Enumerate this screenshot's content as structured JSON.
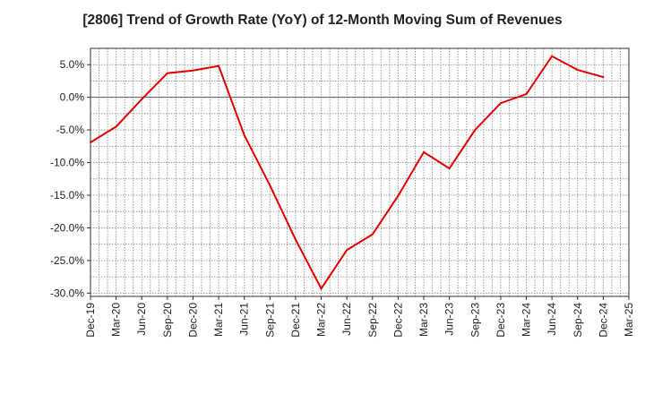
{
  "chart_data": {
    "type": "line",
    "title": "[2806]  Trend of Growth Rate (YoY) of 12-Month Moving Sum of Revenues",
    "xlabel": "",
    "ylabel": "",
    "x_tick_labels": [
      "Dec-19",
      "Mar-20",
      "Jun-20",
      "Sep-20",
      "Dec-20",
      "Mar-21",
      "Jun-21",
      "Sep-21",
      "Dec-21",
      "Mar-22",
      "Jun-22",
      "Sep-22",
      "Dec-22",
      "Mar-23",
      "Jun-23",
      "Sep-23",
      "Dec-23",
      "Mar-24",
      "Jun-24",
      "Sep-24",
      "Dec-24",
      "Mar-25"
    ],
    "y_ticks": [
      5,
      0,
      -5,
      -10,
      -15,
      -20,
      -25,
      -30
    ],
    "y_tick_labels": [
      "5.0%",
      "0.0%",
      "-5.0%",
      "-10.0%",
      "-15.0%",
      "-20.0%",
      "-25.0%",
      "-30.0%"
    ],
    "ylim": [
      -30.5,
      7.5
    ],
    "grid": true,
    "series": [
      {
        "name": "",
        "color": "#e00000",
        "x": [
          "Dec-19",
          "Mar-20",
          "Jun-20",
          "Sep-20",
          "Dec-20",
          "Mar-21",
          "Jun-21",
          "Sep-21",
          "Dec-21",
          "Mar-22",
          "Jun-22",
          "Sep-22",
          "Dec-22",
          "Mar-23",
          "Jun-23",
          "Sep-23",
          "Dec-23",
          "Mar-24",
          "Jun-24",
          "Sep-24",
          "Dec-24"
        ],
        "values": [
          -6.9,
          -4.5,
          -0.3,
          3.7,
          4.1,
          4.8,
          -5.8,
          -13.5,
          -21.8,
          -29.3,
          -23.4,
          -21.0,
          -15.1,
          -8.4,
          -10.9,
          -5.0,
          -0.9,
          0.5,
          6.3,
          4.2,
          3.1
        ]
      }
    ]
  }
}
